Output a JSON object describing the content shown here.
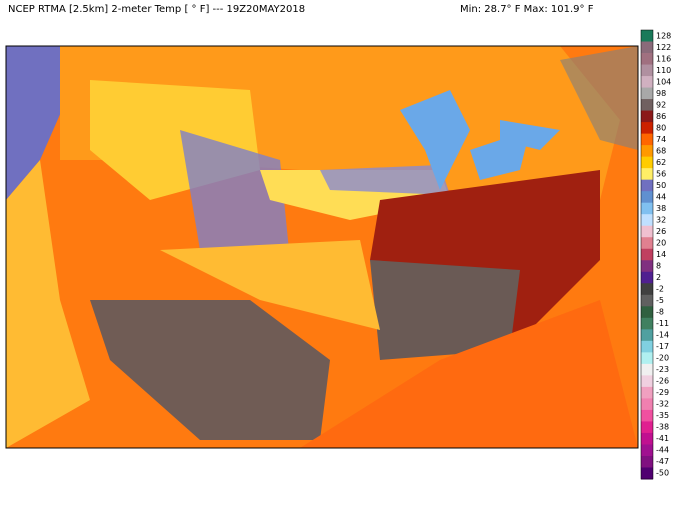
{
  "header": {
    "title": "NCEP RTMA [2.5km] 2-meter Temp [ ° F]  --- 19Z20MAY2018",
    "stats": "Min: 28.7° F Max: 101.9° F"
  },
  "colorbar": {
    "labels": [
      "128",
      "122",
      "116",
      "110",
      "104",
      "98",
      "92",
      "86",
      "80",
      "74",
      "68",
      "62",
      "56",
      "50",
      "44",
      "38",
      "32",
      "26",
      "20",
      "14",
      "8",
      "2",
      "-2",
      "-5",
      "-8",
      "-11",
      "-14",
      "-17",
      "-20",
      "-23",
      "-26",
      "-29",
      "-32",
      "-35",
      "-38",
      "-41",
      "-44",
      "-47",
      "-50"
    ],
    "colors": [
      "#1a7a5a",
      "#8a6a7a",
      "#a07080",
      "#b090a0",
      "#d0b0c0",
      "#a8a8a8",
      "#706060",
      "#8b1a1a",
      "#cc2200",
      "#ff6600",
      "#ff9900",
      "#ffcc00",
      "#ffee66",
      "#7070c0",
      "#6090d0",
      "#80c0f0",
      "#c0e0ff",
      "#f0c0d0",
      "#e08090",
      "#c04060",
      "#803080",
      "#502090",
      "#404040",
      "#606060",
      "#306040",
      "#408060",
      "#50a0a0",
      "#80d0e0",
      "#b0f0f0",
      "#f0f0f0",
      "#f0d0e0",
      "#f0a0c0",
      "#f080b0",
      "#f050a0",
      "#e02090",
      "#c01090",
      "#a01090",
      "#801080",
      "#500070"
    ]
  }
}
